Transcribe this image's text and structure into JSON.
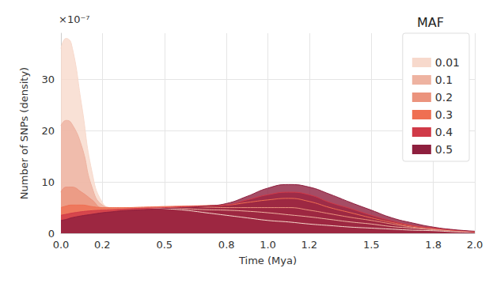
{
  "chart_data": {
    "type": "area",
    "x_label": "Time (Mya)",
    "y_label": "Number of SNPs (density)",
    "annotations": [
      "×10⁻⁷"
    ],
    "legend_title": "MAF",
    "legend": "upper right",
    "grid": true,
    "x": [
      0,
      0.025,
      0.05,
      0.1,
      0.15,
      0.2,
      0.25,
      0.3,
      0.4,
      0.5,
      0.6,
      0.7,
      0.8,
      0.9,
      1.0,
      1.1,
      1.2,
      1.3,
      1.4,
      1.5,
      1.6,
      1.7,
      1.8,
      1.9,
      2.0
    ],
    "series": [
      {
        "name": "0.01",
        "color": "#f7d9cc",
        "values": [
          36,
          38,
          37,
          25,
          12,
          6,
          5,
          5,
          5,
          4.8,
          4.5,
          4,
          3.5,
          3,
          2.5,
          2.2,
          1.8,
          1.5,
          1.2,
          1,
          0.8,
          0.6,
          0.5,
          0.3,
          0.2
        ]
      },
      {
        "name": "0.1",
        "color": "#eeb3a1",
        "values": [
          21,
          22,
          21.5,
          17,
          9,
          5.5,
          5,
          5,
          5,
          5,
          4.8,
          4.6,
          4.5,
          4.3,
          4,
          3.6,
          3.2,
          2.7,
          2.2,
          1.8,
          1.3,
          1,
          0.7,
          0.5,
          0.3
        ]
      },
      {
        "name": "0.2",
        "color": "#eb937d",
        "values": [
          8,
          9,
          9,
          8,
          6.5,
          5,
          5,
          5,
          5,
          5.2,
          5.2,
          5.1,
          5,
          5,
          5,
          5,
          4.5,
          3.8,
          3.1,
          2.5,
          1.8,
          1.2,
          0.8,
          0.5,
          0.3
        ]
      },
      {
        "name": "0.3",
        "color": "#ef6f52",
        "values": [
          5,
          5.3,
          5.5,
          5.5,
          5.2,
          5,
          5,
          5,
          5.1,
          5.2,
          5.3,
          5.4,
          5.5,
          6,
          6.5,
          6.8,
          6.2,
          5,
          4,
          3,
          2.1,
          1.4,
          1,
          0.6,
          0.3
        ]
      },
      {
        "name": "0.4",
        "color": "#d03a48",
        "values": [
          3.5,
          3.7,
          3.9,
          4.2,
          4.4,
          4.5,
          4.6,
          4.7,
          4.9,
          5,
          5.2,
          5.3,
          5.5,
          6.5,
          7.5,
          8,
          7.5,
          6,
          4.8,
          3.5,
          2.4,
          1.5,
          1,
          0.6,
          0.3
        ]
      },
      {
        "name": "0.5",
        "color": "#8e1f3e",
        "values": [
          2.5,
          2.7,
          3,
          3.4,
          3.7,
          4,
          4.2,
          4.4,
          4.6,
          4.8,
          5,
          5.3,
          5.8,
          7.2,
          8.8,
          9.5,
          9,
          7.6,
          6,
          4.5,
          3,
          2,
          1.2,
          0.7,
          0.4
        ]
      }
    ],
    "xlim": [
      0,
      2
    ],
    "xticks": [
      {
        "value": 0,
        "label": "0.0"
      },
      0.2,
      0.5,
      0.8,
      {
        "value": 1,
        "label": "1.0"
      },
      1.2,
      1.5,
      1.8,
      {
        "value": 2,
        "label": "2.0"
      }
    ],
    "ylim": [
      0,
      39
    ],
    "yticks": [
      0,
      10,
      20,
      30
    ]
  }
}
